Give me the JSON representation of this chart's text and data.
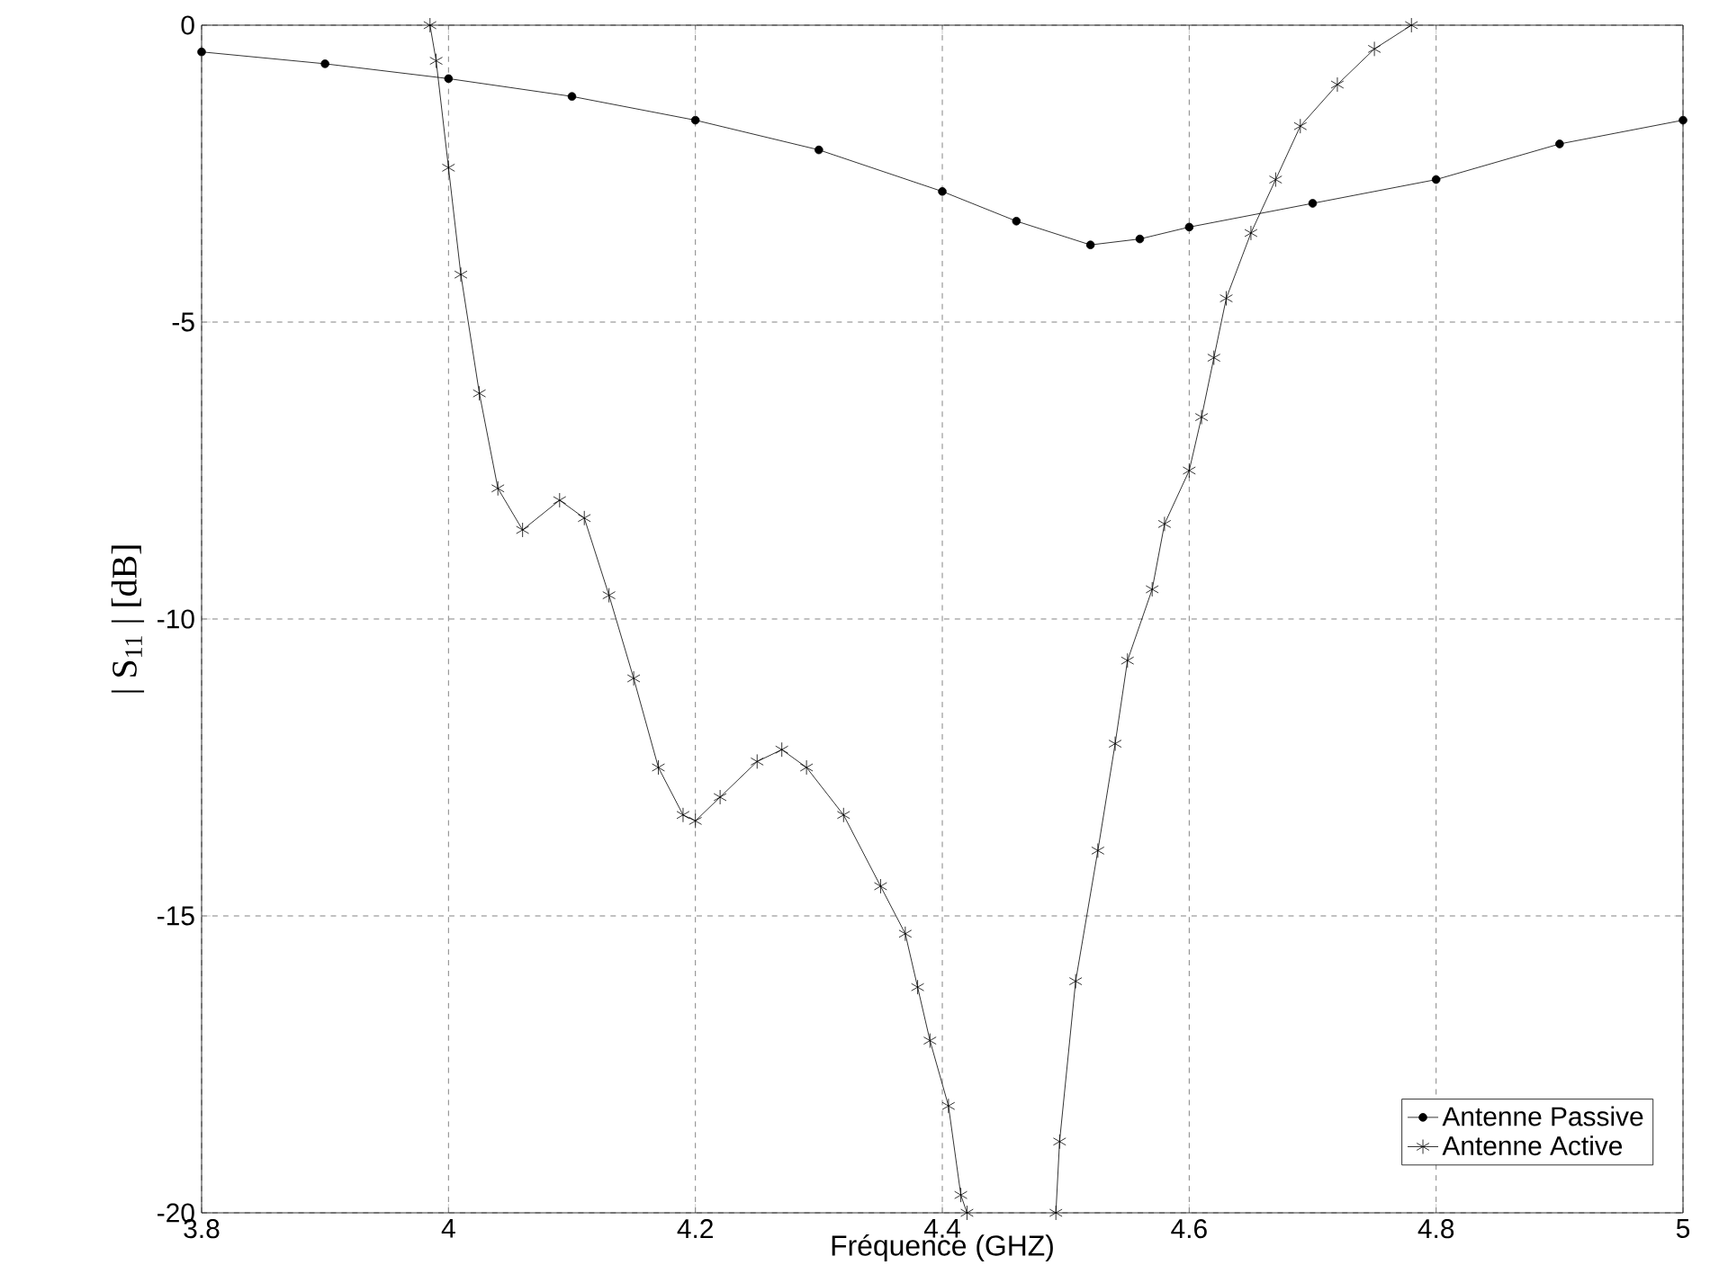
{
  "chart_data": {
    "type": "line",
    "xlabel": "Fréquence (GHZ)",
    "ylabel": "| S$_{11}$ | [dB]",
    "xlim": [
      3.8,
      5
    ],
    "ylim": [
      -20,
      0
    ],
    "xticks": [
      3.8,
      4,
      4.2,
      4.4,
      4.6,
      4.8,
      5
    ],
    "yticks": [
      -20,
      -15,
      -10,
      -5,
      0
    ],
    "grid": true,
    "legend": "bottom right",
    "line_style": "solid",
    "series": [
      {
        "name": "Antenne Passive",
        "color": "#000000",
        "marker": "circle",
        "x": [
          3.8,
          3.9,
          4.0,
          4.1,
          4.2,
          4.3,
          4.4,
          4.46,
          4.52,
          4.56,
          4.6,
          4.7,
          4.8,
          4.9,
          5.0
        ],
        "values": [
          -0.45,
          -0.65,
          -0.9,
          -1.2,
          -1.6,
          -2.1,
          -2.8,
          -3.3,
          -3.7,
          -3.6,
          -3.4,
          -3.0,
          -2.6,
          -2.0,
          -1.6
        ]
      },
      {
        "name": "Antenne Active",
        "color": "#000000",
        "marker": "cross",
        "x": [
          3.985,
          3.99,
          4.0,
          4.01,
          4.025,
          4.04,
          4.06,
          4.09,
          4.11,
          4.13,
          4.15,
          4.17,
          4.19,
          4.2,
          4.22,
          4.25,
          4.27,
          4.29,
          4.32,
          4.35,
          4.37,
          4.38,
          4.39,
          4.405,
          4.415,
          4.42,
          4.45,
          4.492,
          4.495,
          4.508,
          4.526,
          4.54,
          4.55,
          4.57,
          4.58,
          4.6,
          4.61,
          4.62,
          4.63,
          4.65,
          4.67,
          4.69,
          4.72,
          4.75,
          4.78
        ],
        "values": [
          0,
          -0.6,
          -2.4,
          -4.2,
          -6.2,
          -7.8,
          -8.5,
          -8.0,
          -8.3,
          -9.6,
          -11,
          -12.5,
          -13.3,
          -13.4,
          -13.0,
          -12.4,
          -12.2,
          -12.5,
          -13.3,
          -14.5,
          -15.3,
          -16.2,
          -17.1,
          -18.2,
          -19.7,
          -20,
          null,
          -20,
          -18.8,
          -16.1,
          -13.9,
          -12.1,
          -10.7,
          -9.5,
          -8.4,
          -7.5,
          -6.6,
          -5.6,
          -4.6,
          -3.5,
          -2.6,
          -1.7,
          -1.0,
          -0.4,
          0
        ]
      }
    ]
  }
}
